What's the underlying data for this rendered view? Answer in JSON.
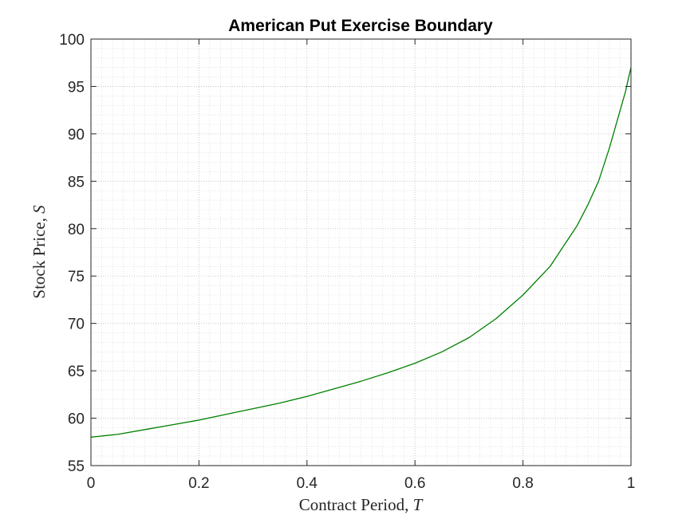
{
  "chart_data": {
    "type": "line",
    "title": "American Put Exercise Boundary",
    "xlabel": "Contract Period, ",
    "xlabel_symbol": "T",
    "ylabel": "Stock Price, ",
    "ylabel_symbol": "S",
    "xlim": [
      0,
      1
    ],
    "ylim": [
      55,
      100
    ],
    "xticks": [
      0,
      0.2,
      0.4,
      0.6,
      0.8,
      1
    ],
    "xtick_labels": [
      "0",
      "0.2",
      "0.4",
      "0.6",
      "0.8",
      "1"
    ],
    "yticks": [
      55,
      60,
      65,
      70,
      75,
      80,
      85,
      90,
      95,
      100
    ],
    "ytick_labels": [
      "55",
      "60",
      "65",
      "70",
      "75",
      "80",
      "85",
      "90",
      "95",
      "100"
    ],
    "grid": true,
    "minor_grid": true,
    "line_color": "#008000",
    "series": [
      {
        "x": [
          0,
          0.05,
          0.1,
          0.15,
          0.2,
          0.25,
          0.3,
          0.35,
          0.4,
          0.45,
          0.5,
          0.55,
          0.6,
          0.65,
          0.7,
          0.75,
          0.8,
          0.85,
          0.9,
          0.92,
          0.94,
          0.96,
          0.97,
          0.98,
          0.99,
          0.995,
          1.0
        ],
        "values": [
          58.0,
          58.3,
          58.8,
          59.3,
          59.8,
          60.4,
          61.0,
          61.6,
          62.3,
          63.1,
          63.9,
          64.8,
          65.8,
          67.0,
          68.5,
          70.5,
          73.0,
          76.0,
          80.3,
          82.5,
          85.0,
          88.5,
          90.5,
          92.5,
          94.5,
          95.8,
          97.0
        ]
      }
    ]
  }
}
